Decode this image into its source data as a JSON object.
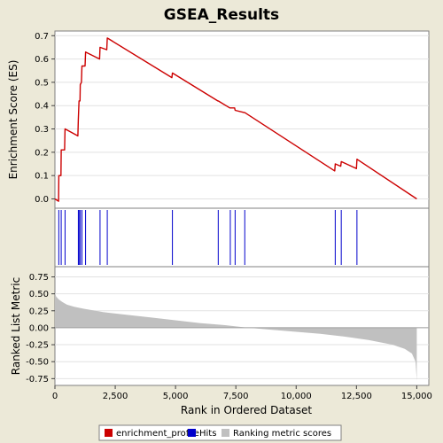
{
  "chart_data": [
    {
      "type": "line",
      "panel": "enrichment-score",
      "title": "GSEA_Results",
      "ylabel": "Enrichment Score (ES)",
      "xlim": [
        0,
        15500
      ],
      "ylim": [
        -0.04,
        0.72
      ],
      "yticks": [
        0.0,
        0.1,
        0.2,
        0.3,
        0.4,
        0.5,
        0.6,
        0.7
      ],
      "ytick_labels": [
        "0.0",
        "0.1",
        "0.2",
        "0.3",
        "0.4",
        "0.5",
        "0.6",
        "0.7"
      ],
      "grid": true,
      "series": [
        {
          "name": "enrichment_profile",
          "color": "#cc0000",
          "points": [
            [
              0,
              0.0
            ],
            [
              150,
              -0.01
            ],
            [
              160,
              0.1
            ],
            [
              250,
              0.1
            ],
            [
              260,
              0.21
            ],
            [
              400,
              0.21
            ],
            [
              420,
              0.3
            ],
            [
              950,
              0.27
            ],
            [
              970,
              0.34
            ],
            [
              1000,
              0.42
            ],
            [
              1040,
              0.42
            ],
            [
              1050,
              0.49
            ],
            [
              1100,
              0.5
            ],
            [
              1120,
              0.57
            ],
            [
              1250,
              0.57
            ],
            [
              1270,
              0.63
            ],
            [
              1850,
              0.6
            ],
            [
              1870,
              0.65
            ],
            [
              2150,
              0.64
            ],
            [
              2170,
              0.69
            ],
            [
              4850,
              0.52
            ],
            [
              4870,
              0.54
            ],
            [
              6750,
              0.42
            ],
            [
              6770,
              0.42
            ],
            [
              7250,
              0.39
            ],
            [
              7270,
              0.39
            ],
            [
              7450,
              0.39
            ],
            [
              7470,
              0.38
            ],
            [
              7850,
              0.37
            ],
            [
              7870,
              0.37
            ],
            [
              11600,
              0.12
            ],
            [
              11620,
              0.15
            ],
            [
              11850,
              0.14
            ],
            [
              11870,
              0.16
            ],
            [
              12500,
              0.13
            ],
            [
              12520,
              0.17
            ],
            [
              15000,
              0.0
            ]
          ]
        }
      ]
    },
    {
      "type": "event-marks",
      "panel": "hits",
      "series": [
        {
          "name": "Hits",
          "color": "#0000cc",
          "x": [
            160,
            260,
            420,
            970,
            1000,
            1050,
            1120,
            1270,
            1870,
            2170,
            4870,
            6770,
            7270,
            7470,
            7870,
            11620,
            11870,
            12520
          ]
        }
      ]
    },
    {
      "type": "area",
      "panel": "ranked-list",
      "ylabel": "Ranked List Metric",
      "xlabel": "Rank in Ordered Dataset",
      "xlim": [
        0,
        15500
      ],
      "ylim": [
        -0.85,
        0.9
      ],
      "xticks": [
        0,
        2500,
        5000,
        7500,
        10000,
        12500,
        15000
      ],
      "xtick_labels": [
        "0",
        "2,500",
        "5,000",
        "7,500",
        "10,000",
        "12,500",
        "15,000"
      ],
      "yticks": [
        0.75,
        0.5,
        0.25,
        0.0,
        -0.25,
        -0.5,
        -0.75
      ],
      "ytick_labels": [
        "0.75",
        "0.50",
        "0.25",
        "0.00",
        "-0.25",
        "-0.50",
        "-0.75"
      ],
      "grid": true,
      "series": [
        {
          "name": "Ranking metric scores",
          "color": "#c0c0c0",
          "points": [
            [
              0,
              0.52
            ],
            [
              50,
              0.46
            ],
            [
              150,
              0.42
            ],
            [
              300,
              0.38
            ],
            [
              500,
              0.34
            ],
            [
              800,
              0.31
            ],
            [
              1200,
              0.28
            ],
            [
              2000,
              0.23
            ],
            [
              3000,
              0.19
            ],
            [
              4000,
              0.15
            ],
            [
              5000,
              0.11
            ],
            [
              6000,
              0.07
            ],
            [
              7000,
              0.04
            ],
            [
              8000,
              0.0
            ],
            [
              9000,
              -0.03
            ],
            [
              10000,
              -0.06
            ],
            [
              11000,
              -0.09
            ],
            [
              12000,
              -0.13
            ],
            [
              13000,
              -0.18
            ],
            [
              14000,
              -0.25
            ],
            [
              14500,
              -0.31
            ],
            [
              14800,
              -0.38
            ],
            [
              14950,
              -0.5
            ],
            [
              15000,
              -0.78
            ]
          ]
        }
      ]
    }
  ],
  "legend": {
    "position": "bottom",
    "items": [
      {
        "label": "enrichment_profile",
        "color": "#cc0000"
      },
      {
        "label": "Hits",
        "color": "#0000cc"
      },
      {
        "label": "Ranking metric scores",
        "color": "#c0c0c0"
      }
    ]
  }
}
